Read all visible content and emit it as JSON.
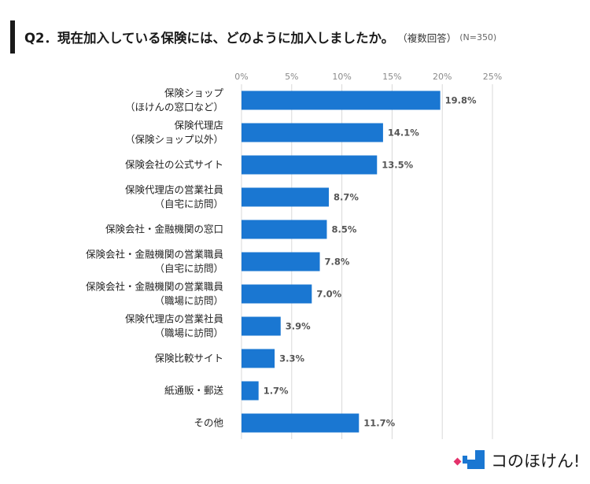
{
  "title": {
    "main": "Q2．現在加入している保険には、どのように加入しましたか。",
    "sub": "（複数回答）",
    "n": "(N=350)"
  },
  "chart_data": {
    "type": "bar",
    "orientation": "horizontal",
    "categories": [
      [
        "保険ショップ",
        "（ほけんの窓口など）"
      ],
      [
        "保険代理店",
        "（保険ショップ以外）"
      ],
      [
        "保険会社の公式サイト"
      ],
      [
        "保険代理店の営業社員",
        "（自宅に訪問）"
      ],
      [
        "保険会社・金融機関の窓口"
      ],
      [
        "保険会社・金融機関の営業職員",
        "（自宅に訪問）"
      ],
      [
        "保険会社・金融機関の営業職員",
        "（職場に訪問）"
      ],
      [
        "保険代理店の営業社員",
        "（職場に訪問）"
      ],
      [
        "保険比較サイト"
      ],
      [
        "紙通販・郵送"
      ],
      [
        "その他"
      ]
    ],
    "values": [
      19.8,
      14.1,
      13.5,
      8.7,
      8.5,
      7.8,
      7.0,
      3.9,
      3.3,
      1.7,
      11.7
    ],
    "value_labels": [
      "19.8%",
      "14.1%",
      "13.5%",
      "8.7%",
      "8.5%",
      "7.8%",
      "7.0%",
      "3.9%",
      "3.3%",
      "1.7%",
      "11.7%"
    ],
    "xlim": [
      0,
      25
    ],
    "xticks": [
      "0%",
      "5%",
      "10%",
      "15%",
      "20%",
      "25%"
    ],
    "bar_color": "#1a77d2",
    "grid_color": "#d9d9d9",
    "legend": "none"
  },
  "brand": {
    "name": "コのほけん!",
    "colors": {
      "accent": "#1a77d2",
      "pink": "#e4326b"
    }
  }
}
